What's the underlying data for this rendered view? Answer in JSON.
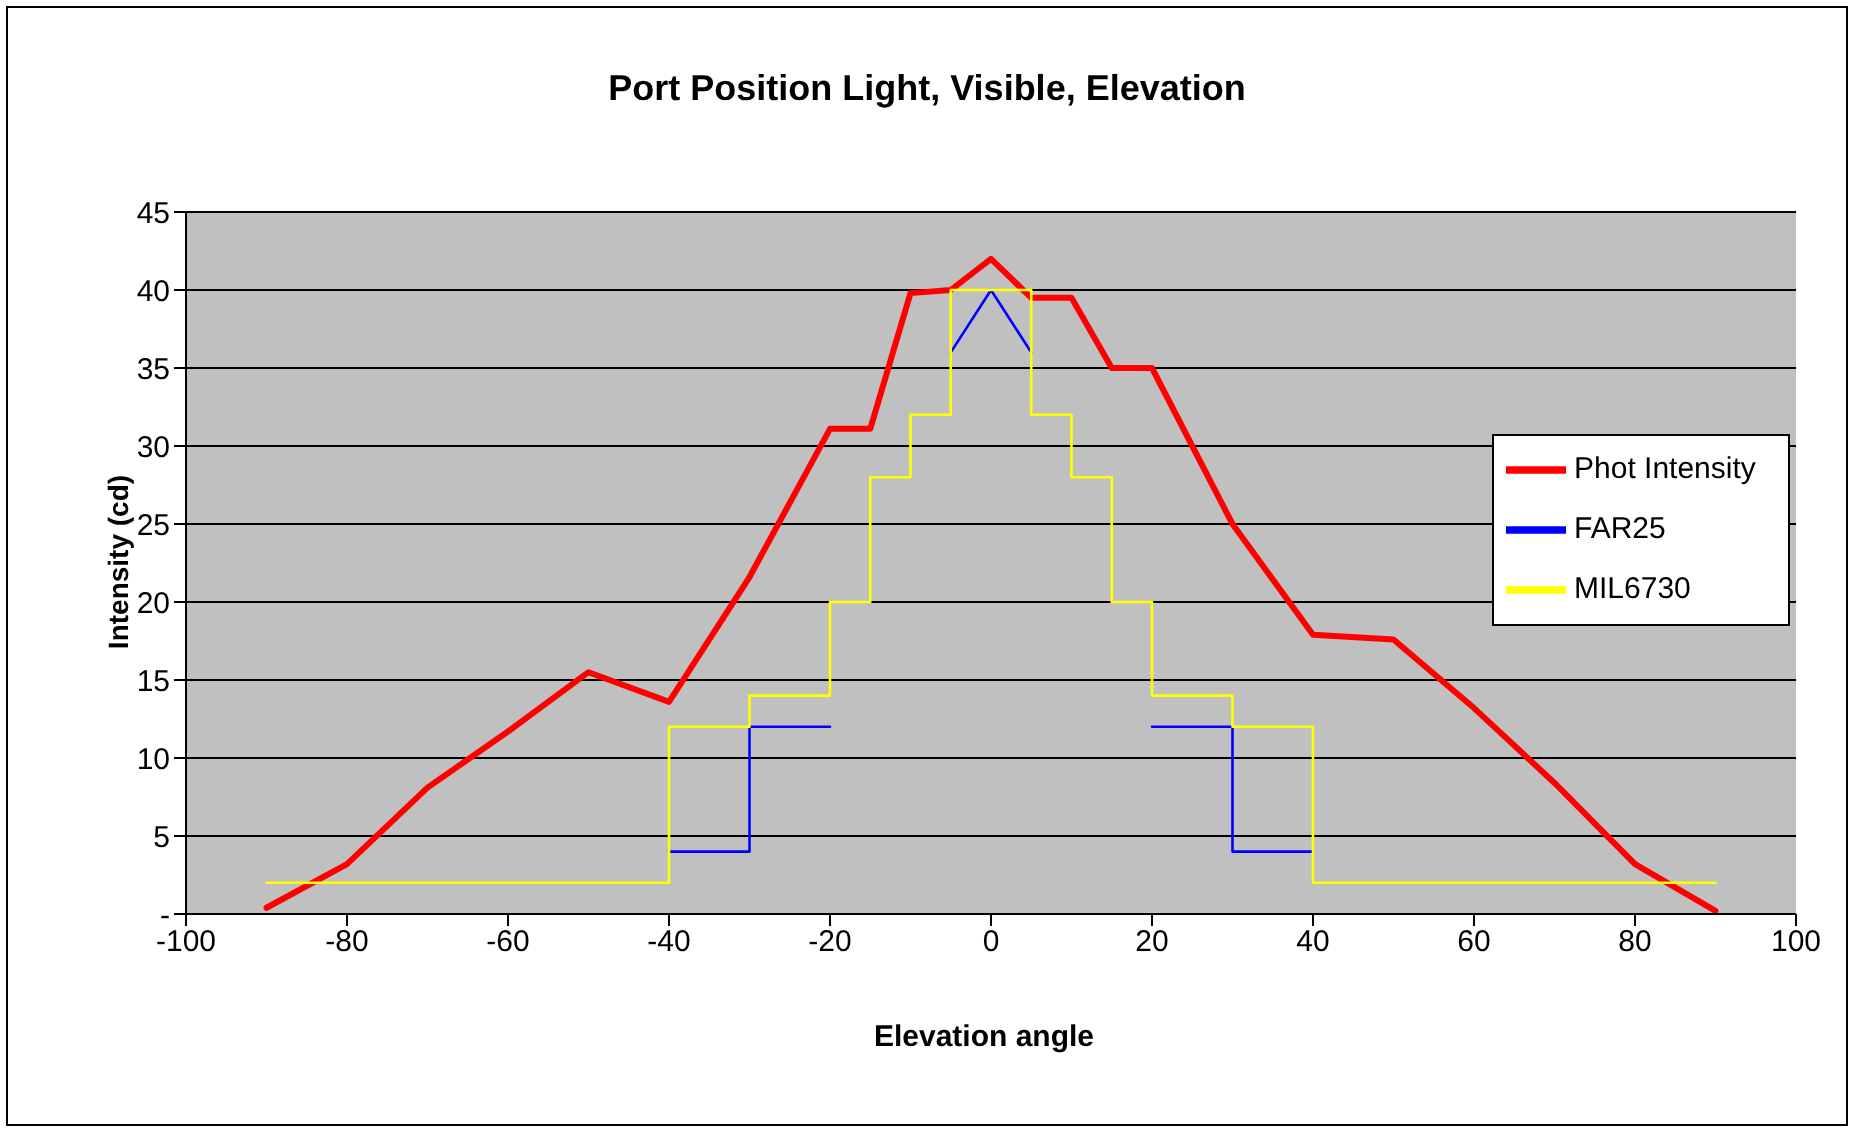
{
  "chart_data": {
    "type": "line",
    "title": "Port Position Light, Visible, Elevation",
    "xlabel": "Elevation angle",
    "ylabel": "Intensity (cd)",
    "xlim": [
      -100,
      100
    ],
    "xticks": [
      -100,
      -80,
      -60,
      -40,
      -20,
      0,
      20,
      40,
      60,
      80,
      100
    ],
    "ylim": [
      0,
      45
    ],
    "yticks": [
      {
        "value": 0,
        "label": "-"
      },
      5,
      10,
      15,
      20,
      25,
      30,
      35,
      40,
      45
    ],
    "grid": "y",
    "legend": "right",
    "marker": "none",
    "line_style": "solid",
    "series": [
      {
        "name": "Phot Intensity",
        "color": "#ff0000",
        "x": [
          -90,
          -80,
          -70,
          -60,
          -50,
          -40,
          -30,
          -20,
          -15,
          -10,
          -5,
          0,
          5,
          10,
          15,
          20,
          30,
          40,
          50,
          60,
          70,
          80,
          90
        ],
        "values": [
          0.4,
          3.2,
          8.1,
          11.7,
          15.5,
          13.6,
          21.6,
          31.1,
          31.1,
          39.8,
          40,
          42,
          39.5,
          39.5,
          35,
          35,
          25,
          17.9,
          17.6,
          13.2,
          8.4,
          3.2,
          0.2
        ]
      },
      {
        "name": "FAR25",
        "color": "#0000ff",
        "x": [
          -40,
          -30,
          -30,
          -20,
          null,
          -5,
          0,
          5,
          null,
          20,
          30,
          30,
          40
        ],
        "values": [
          4,
          4,
          12,
          12,
          null,
          36,
          40,
          36,
          null,
          12,
          12,
          4,
          4
        ]
      },
      {
        "name": "MIL6730",
        "color": "#ffff00",
        "x": [
          -90,
          -40,
          -40,
          -30,
          -30,
          -20,
          -20,
          -15,
          -15,
          -10,
          -10,
          -5,
          -5,
          5,
          5,
          10,
          10,
          15,
          15,
          20,
          20,
          30,
          30,
          40,
          40,
          90
        ],
        "values": [
          2,
          2,
          12,
          12,
          14,
          14,
          20,
          20,
          28,
          28,
          32,
          32,
          40,
          40,
          32,
          32,
          28,
          28,
          20,
          20,
          14,
          14,
          12,
          12,
          2,
          2
        ]
      }
    ]
  }
}
